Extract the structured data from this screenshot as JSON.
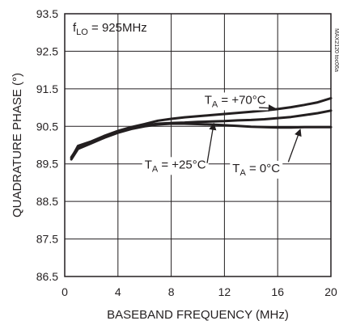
{
  "chart_data": {
    "type": "line",
    "title": "",
    "xlabel": "BASEBAND FREQUENCY (MHz)",
    "ylabel": "QUADRATURE PHASE (°)",
    "xlim": [
      0,
      20
    ],
    "ylim": [
      86.5,
      93.5
    ],
    "xticks": [
      0,
      4,
      8,
      12,
      16,
      20
    ],
    "yticks": [
      86.5,
      87.5,
      88.5,
      89.5,
      90.5,
      91.5,
      92.5,
      93.5
    ],
    "grid": true,
    "legend": "none",
    "annotations": {
      "condition": {
        "main": "f",
        "sub": "LO",
        "rest": " = 925MHz"
      },
      "side_code": "MAX2120 toc06a"
    },
    "series": [
      {
        "name": "T_A = +70°C",
        "label": {
          "main": "T",
          "sub": "A",
          "rest": " = +70°C"
        },
        "x": [
          0.5,
          1,
          2,
          3,
          4,
          5,
          6,
          7,
          8,
          9,
          10,
          11,
          12,
          13,
          14,
          15,
          16,
          17,
          18,
          19,
          20
        ],
        "y": [
          89.65,
          89.98,
          90.1,
          90.25,
          90.38,
          90.48,
          90.56,
          90.65,
          90.7,
          90.74,
          90.77,
          90.8,
          90.83,
          90.86,
          90.89,
          90.92,
          90.96,
          91.01,
          91.07,
          91.14,
          91.25
        ]
      },
      {
        "name": "T_A = +25°C",
        "label": {
          "main": "T",
          "sub": "A",
          "rest": " = +25°C"
        },
        "x": [
          0.5,
          1,
          2,
          3,
          4,
          5,
          6,
          7,
          8,
          9,
          10,
          11,
          12,
          13,
          14,
          15,
          16,
          17,
          18,
          19,
          20
        ],
        "y": [
          89.68,
          89.95,
          90.08,
          90.22,
          90.34,
          90.44,
          90.52,
          90.57,
          90.59,
          90.6,
          90.62,
          90.63,
          90.64,
          90.66,
          90.67,
          90.69,
          90.72,
          90.75,
          90.8,
          90.85,
          90.92
        ]
      },
      {
        "name": "T_A = 0°C",
        "label": {
          "main": "T",
          "sub": "A",
          "rest": " = 0°C"
        },
        "x": [
          0.5,
          1,
          2,
          3,
          4,
          5,
          6,
          7,
          8,
          9,
          10,
          11,
          12,
          13,
          14,
          15,
          16,
          17,
          18,
          19,
          20
        ],
        "y": [
          89.62,
          89.9,
          90.05,
          90.2,
          90.33,
          90.43,
          90.5,
          90.55,
          90.57,
          90.57,
          90.56,
          90.55,
          90.53,
          90.51,
          90.49,
          90.48,
          90.47,
          90.47,
          90.48,
          90.48,
          90.48
        ]
      }
    ]
  }
}
